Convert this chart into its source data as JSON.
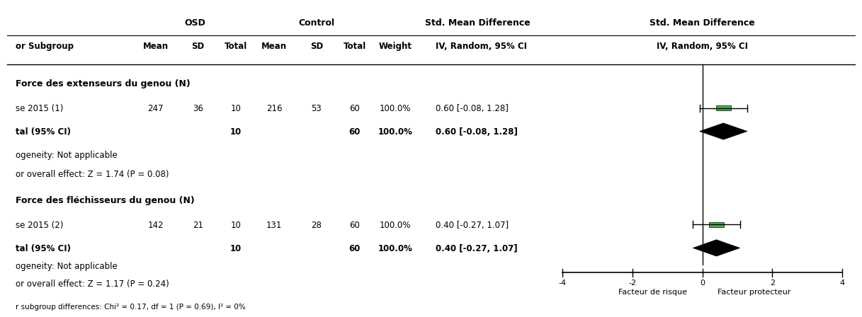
{
  "header_row": {
    "osd_label": "OSD",
    "control_label": "Control",
    "std_mean_diff_label": "Std. Mean Difference",
    "std_mean_diff_label2": "Std. Mean Difference",
    "iv_random_label": "IV, Random, 95% CI",
    "iv_random_label2": "IV, Random, 95% CI",
    "col_labels": [
      "or Subgroup",
      "Mean",
      "SD",
      "Total",
      "Mean",
      "SD",
      "Total",
      "Weight"
    ],
    "ci_col_label": "IV, Random, 95% CI"
  },
  "section1": {
    "title": "Force des extenseurs du genou (N)",
    "study_label": "se 2015 (1)",
    "study_mean_osd": 247,
    "study_sd_osd": 36,
    "study_total_osd": 10,
    "study_mean_ctrl": 216,
    "study_sd_ctrl": 53,
    "study_total_ctrl": 60,
    "study_weight": "100.0%",
    "study_ci_text": "0.60 [-0.08, 1.28]",
    "study_point": 0.6,
    "study_ci_low": -0.08,
    "study_ci_high": 1.28,
    "total_label": "tal (95% CI)",
    "total_total_osd": 10,
    "total_total_ctrl": 60,
    "total_weight": "100.0%",
    "total_ci_text": "0.60 [-0.08, 1.28]",
    "total_point": 0.6,
    "total_ci_low": -0.08,
    "total_ci_high": 1.28,
    "heterogeneity_text": "ogeneity: Not applicable",
    "overall_effect_text": "or overall effect: Z = 1.74 (P = 0.08)"
  },
  "section2": {
    "title": "Force des fléchisseurs du genou (N)",
    "study_label": "se 2015 (2)",
    "study_mean_osd": 142,
    "study_sd_osd": 21,
    "study_total_osd": 10,
    "study_mean_ctrl": 131,
    "study_sd_ctrl": 28,
    "study_total_ctrl": 60,
    "study_weight": "100.0%",
    "study_ci_text": "0.40 [-0.27, 1.07]",
    "study_point": 0.4,
    "study_ci_low": -0.27,
    "study_ci_high": 1.07,
    "total_label": "tal (95% CI)",
    "total_total_osd": 10,
    "total_total_ctrl": 60,
    "total_weight": "100.0%",
    "total_ci_text": "0.40 [-0.27, 1.07]",
    "total_point": 0.4,
    "total_ci_low": -0.27,
    "total_ci_high": 1.07,
    "heterogeneity_text": "ogeneity: Not applicable",
    "overall_effect_text": "or overall effect: Z = 1.17 (P = 0.24)"
  },
  "bottom_text": "r subgroup differences: Chi² = 0.17, df = 1 (P = 0.69), I² = 0%",
  "axis_min": -4,
  "axis_max": 4,
  "axis_ticks": [
    -4,
    -2,
    0,
    2,
    4
  ],
  "xlabel_left": "Facteur de risque",
  "xlabel_right": "Facteur protecteur",
  "study_color": "#4CAF50",
  "diamond_color": "#000000",
  "line_color": "#000000",
  "bg_color": "#ffffff"
}
